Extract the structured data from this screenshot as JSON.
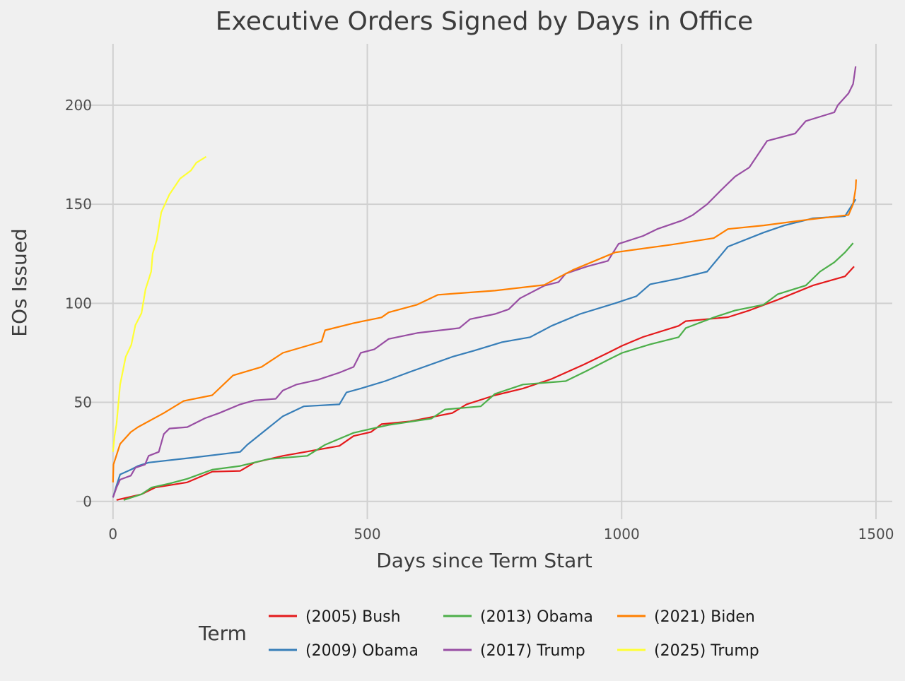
{
  "chart_data": {
    "type": "line",
    "title": "Executive Orders Signed by Days in Office",
    "xlabel": "Days since Term Start",
    "ylabel": "EOs Issued",
    "xlim": [
      -72,
      1532
    ],
    "ylim": [
      -9,
      231
    ],
    "xticks": [
      0,
      500,
      1000,
      1500
    ],
    "yticks": [
      0,
      50,
      100,
      150,
      200
    ],
    "grid": true,
    "legend": {
      "title": "Term",
      "placement": "bottom"
    },
    "series": [
      {
        "name": "(2005) Bush",
        "color": "#e41a1c",
        "points": [
          [
            7,
            0.7
          ],
          [
            56,
            3.6
          ],
          [
            83,
            7
          ],
          [
            146,
            9.6
          ],
          [
            195,
            15
          ],
          [
            250,
            15.4
          ],
          [
            278,
            19.6
          ],
          [
            334,
            23
          ],
          [
            445,
            28
          ],
          [
            473,
            33
          ],
          [
            507,
            35
          ],
          [
            528,
            39
          ],
          [
            584,
            40.4
          ],
          [
            667,
            44.6
          ],
          [
            695,
            49
          ],
          [
            751,
            53.6
          ],
          [
            806,
            57
          ],
          [
            862,
            61.8
          ],
          [
            890,
            65
          ],
          [
            925,
            69
          ],
          [
            973,
            75
          ],
          [
            1001,
            78.6
          ],
          [
            1042,
            83
          ],
          [
            1112,
            88.6
          ],
          [
            1126,
            91
          ],
          [
            1209,
            93
          ],
          [
            1251,
            96.4
          ],
          [
            1307,
            101.8
          ],
          [
            1376,
            109
          ],
          [
            1439,
            113.6
          ],
          [
            1457,
            118.6
          ]
        ]
      },
      {
        "name": "(2009) Obama",
        "color": "#377eb8",
        "points": [
          [
            0,
            2
          ],
          [
            7,
            8
          ],
          [
            14,
            13.6
          ],
          [
            35,
            16
          ],
          [
            49,
            17.9
          ],
          [
            70,
            19.6
          ],
          [
            153,
            22
          ],
          [
            250,
            25
          ],
          [
            264,
            28.6
          ],
          [
            334,
            43
          ],
          [
            375,
            48
          ],
          [
            445,
            49
          ],
          [
            459,
            55
          ],
          [
            487,
            57
          ],
          [
            535,
            60.7
          ],
          [
            584,
            65.4
          ],
          [
            667,
            73
          ],
          [
            709,
            76
          ],
          [
            765,
            80.4
          ],
          [
            820,
            82.9
          ],
          [
            862,
            88.6
          ],
          [
            918,
            94.6
          ],
          [
            987,
            100
          ],
          [
            1029,
            103.6
          ],
          [
            1056,
            109.6
          ],
          [
            1112,
            112.5
          ],
          [
            1168,
            116
          ],
          [
            1209,
            128.6
          ],
          [
            1279,
            135.7
          ],
          [
            1320,
            139.3
          ],
          [
            1376,
            142.9
          ],
          [
            1439,
            144
          ],
          [
            1460,
            152.5
          ]
        ]
      },
      {
        "name": "(2013) Obama",
        "color": "#4daf4a",
        "points": [
          [
            21,
            0.7
          ],
          [
            56,
            3.6
          ],
          [
            76,
            7
          ],
          [
            111,
            9
          ],
          [
            146,
            11.4
          ],
          [
            195,
            16
          ],
          [
            250,
            17.9
          ],
          [
            306,
            21.4
          ],
          [
            382,
            23
          ],
          [
            417,
            28.6
          ],
          [
            473,
            34.6
          ],
          [
            542,
            38.6
          ],
          [
            626,
            41.8
          ],
          [
            653,
            46.4
          ],
          [
            723,
            48
          ],
          [
            751,
            54.3
          ],
          [
            806,
            59
          ],
          [
            890,
            60.7
          ],
          [
            932,
            66
          ],
          [
            973,
            71.4
          ],
          [
            1001,
            75
          ],
          [
            1056,
            79.3
          ],
          [
            1112,
            82.9
          ],
          [
            1126,
            87.5
          ],
          [
            1181,
            92.9
          ],
          [
            1223,
            96.4
          ],
          [
            1279,
            99.3
          ],
          [
            1307,
            104.6
          ],
          [
            1362,
            109
          ],
          [
            1390,
            116
          ],
          [
            1418,
            120.7
          ],
          [
            1439,
            125.7
          ],
          [
            1455,
            130.4
          ]
        ]
      },
      {
        "name": "(2017) Trump",
        "color": "#984ea3",
        "points": [
          [
            0,
            2
          ],
          [
            7,
            7
          ],
          [
            14,
            11
          ],
          [
            35,
            13
          ],
          [
            44,
            17
          ],
          [
            63,
            18.6
          ],
          [
            70,
            23
          ],
          [
            90,
            25
          ],
          [
            100,
            34
          ],
          [
            111,
            36.8
          ],
          [
            146,
            37.5
          ],
          [
            181,
            42
          ],
          [
            209,
            44.6
          ],
          [
            250,
            49
          ],
          [
            278,
            51
          ],
          [
            320,
            51.8
          ],
          [
            334,
            56
          ],
          [
            361,
            59
          ],
          [
            403,
            61.4
          ],
          [
            445,
            65
          ],
          [
            473,
            67.9
          ],
          [
            487,
            75
          ],
          [
            514,
            76.8
          ],
          [
            542,
            82
          ],
          [
            598,
            85
          ],
          [
            681,
            87.5
          ],
          [
            702,
            92
          ],
          [
            751,
            94.6
          ],
          [
            778,
            97
          ],
          [
            800,
            102.5
          ],
          [
            848,
            108.9
          ],
          [
            876,
            110.7
          ],
          [
            890,
            115
          ],
          [
            932,
            118.6
          ],
          [
            973,
            121.4
          ],
          [
            994,
            130
          ],
          [
            1042,
            134
          ],
          [
            1070,
            137.5
          ],
          [
            1119,
            141.8
          ],
          [
            1140,
            144.6
          ],
          [
            1168,
            150
          ],
          [
            1195,
            157
          ],
          [
            1223,
            164
          ],
          [
            1251,
            168.6
          ],
          [
            1286,
            182
          ],
          [
            1341,
            185.7
          ],
          [
            1362,
            192
          ],
          [
            1418,
            196.4
          ],
          [
            1425,
            200
          ],
          [
            1446,
            206
          ],
          [
            1455,
            210.7
          ],
          [
            1460,
            219.6
          ]
        ]
      },
      {
        "name": "(2021) Biden",
        "color": "#ff7f00",
        "points": [
          [
            0,
            9.6
          ],
          [
            1,
            18.6
          ],
          [
            14,
            29
          ],
          [
            35,
            35
          ],
          [
            49,
            37.5
          ],
          [
            100,
            44.6
          ],
          [
            139,
            50.7
          ],
          [
            195,
            53.6
          ],
          [
            236,
            63.6
          ],
          [
            292,
            67.9
          ],
          [
            334,
            75
          ],
          [
            410,
            80.7
          ],
          [
            417,
            86.4
          ],
          [
            473,
            90
          ],
          [
            528,
            92.9
          ],
          [
            542,
            95.4
          ],
          [
            598,
            99.3
          ],
          [
            639,
            104.3
          ],
          [
            751,
            106.4
          ],
          [
            848,
            109.3
          ],
          [
            904,
            116.8
          ],
          [
            987,
            125.7
          ],
          [
            1098,
            129.6
          ],
          [
            1181,
            132.9
          ],
          [
            1209,
            137.5
          ],
          [
            1279,
            139.3
          ],
          [
            1362,
            142.1
          ],
          [
            1446,
            144.6
          ],
          [
            1455,
            150
          ],
          [
            1460,
            157.9
          ],
          [
            1461,
            162.5
          ]
        ]
      },
      {
        "name": "(2025) Trump",
        "color": "#ffff33",
        "points": [
          [
            0,
            25
          ],
          [
            3,
            33
          ],
          [
            7,
            39
          ],
          [
            14,
            59
          ],
          [
            25,
            73
          ],
          [
            36,
            79
          ],
          [
            44,
            89
          ],
          [
            56,
            95
          ],
          [
            64,
            107
          ],
          [
            75,
            116
          ],
          [
            78,
            125
          ],
          [
            86,
            132
          ],
          [
            95,
            146
          ],
          [
            111,
            155
          ],
          [
            132,
            163
          ],
          [
            153,
            167
          ],
          [
            164,
            171
          ],
          [
            177,
            173
          ],
          [
            183,
            174
          ]
        ]
      }
    ]
  }
}
